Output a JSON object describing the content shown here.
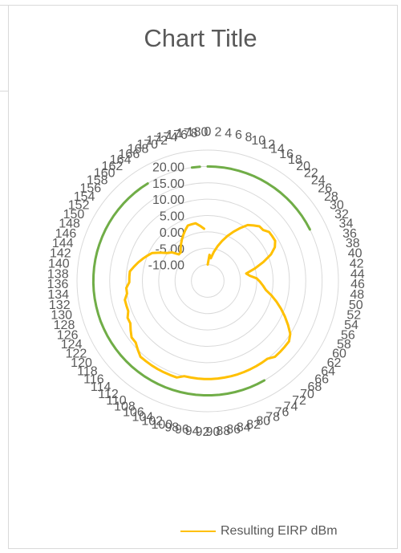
{
  "chart_data": {
    "type": "radar",
    "title": "Chart Title",
    "radial_ticks": [
      "-10.00",
      "-5.00",
      "0.00",
      "5.00",
      "10.00",
      "15.00",
      "20.00"
    ],
    "rlim": [
      -15,
      25
    ],
    "angle_labels": [
      "0",
      "2",
      "4",
      "6",
      "8",
      "10",
      "12",
      "14",
      "16",
      "18",
      "20",
      "22",
      "24",
      "26",
      "28",
      "30",
      "32",
      "34",
      "36",
      "38",
      "40",
      "42",
      "44",
      "46",
      "48",
      "50",
      "52",
      "54",
      "56",
      "58",
      "60",
      "62",
      "64",
      "66",
      "68",
      "70",
      "72",
      "74",
      "76",
      "78",
      "80",
      "82",
      "84",
      "86",
      "88",
      "90",
      "92",
      "94",
      "96",
      "98",
      "100",
      "102",
      "104",
      "106",
      "108",
      "110",
      "112",
      "114",
      "116",
      "118",
      "120",
      "122",
      "124",
      "126",
      "128",
      "130",
      "132",
      "134",
      "136",
      "138",
      "140",
      "142",
      "144",
      "146",
      "148",
      "150",
      "152",
      "154",
      "156",
      "158",
      "160",
      "162",
      "164",
      "166",
      "168",
      "170",
      "172",
      "174",
      "176",
      "178",
      "180"
    ],
    "series": [
      {
        "name": "Resulting EIRP dBm",
        "color": "#ffc000",
        "values": [
          -10,
          -7,
          -8,
          -6,
          -4,
          -2,
          0,
          2,
          4,
          6,
          7,
          8,
          8,
          9,
          9,
          9,
          8,
          6,
          3,
          0,
          -3,
          -2,
          0,
          1,
          2,
          3,
          5,
          7,
          9,
          11,
          13,
          15,
          16,
          16,
          16,
          16,
          15,
          15,
          15,
          15,
          15,
          15,
          15,
          15,
          15,
          15,
          15,
          15,
          15,
          15,
          16,
          16,
          16,
          16,
          16,
          16,
          16,
          15,
          14,
          14,
          13,
          12,
          12,
          11,
          11,
          11,
          10,
          10,
          9,
          9,
          9,
          8,
          7,
          6,
          5,
          4,
          2,
          0,
          -1,
          -3,
          -3,
          -2,
          -1,
          0,
          1,
          2,
          3,
          3,
          3,
          2,
          1
        ]
      },
      {
        "name": "",
        "color": "#70ad47",
        "values": [
          20,
          20,
          20,
          20,
          20,
          20,
          20,
          20,
          20,
          20,
          20,
          20,
          20,
          20,
          20,
          20,
          20,
          20,
          20,
          20,
          20,
          20,
          20,
          20,
          20,
          20,
          20,
          20,
          20,
          20,
          20,
          20,
          20,
          20,
          20,
          20,
          20,
          20,
          20,
          20,
          20,
          20,
          20,
          20,
          20,
          20,
          20,
          20,
          20,
          20,
          20,
          20,
          20,
          20,
          20,
          20,
          20,
          20,
          20,
          20,
          20,
          20,
          20,
          20,
          20,
          20,
          20,
          20,
          20,
          20,
          20,
          20,
          20,
          20,
          20,
          20,
          20,
          20,
          20,
          20,
          20,
          20,
          20,
          20,
          20,
          20,
          20,
          20,
          20,
          20,
          20
        ],
        "gaps": [
          [
            16,
            38
          ],
          [
            83,
            89
          ]
        ]
      }
    ],
    "legend": {
      "position": "bottom-right",
      "entries": [
        "Resulting EIRP dBm"
      ]
    },
    "grid": true
  }
}
